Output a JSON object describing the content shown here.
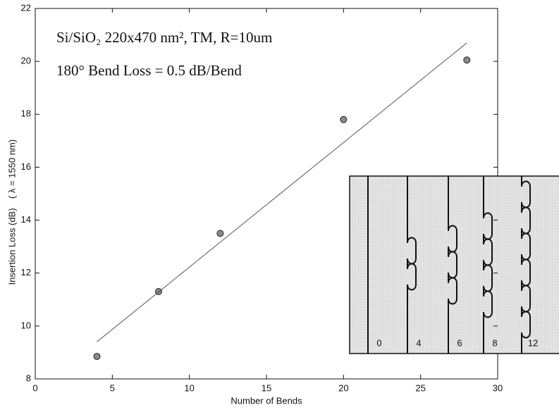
{
  "chart_data": {
    "type": "scatter",
    "annotations": [
      "Si/SiO₂  220x470 nm², TM,  R=10um",
      "180° Bend Loss = 0.5 dB/Bend"
    ],
    "x_label": "Number of Bends",
    "y_label": "Insertion Loss (dB)",
    "y_label_2": "( λ = 1550 nm)",
    "series": [
      {
        "type": "scatter",
        "color": "#8a8a8a",
        "x": [
          4,
          8,
          12,
          20,
          28
        ],
        "values": [
          8.85,
          11.3,
          13.5,
          17.8,
          20.05
        ]
      },
      {
        "type": "line",
        "color": "#444444",
        "x": [
          4,
          28
        ],
        "values": [
          9.4,
          20.7
        ]
      }
    ],
    "xlim": [
      0,
      30
    ],
    "xticks": [
      0,
      5,
      10,
      15,
      20,
      25,
      30
    ],
    "ylim": [
      8,
      22
    ],
    "yticks": [
      8,
      10,
      12,
      14,
      16,
      18,
      20,
      22
    ],
    "inset_labels": [
      "0",
      "4",
      "6",
      "8",
      "12"
    ]
  }
}
